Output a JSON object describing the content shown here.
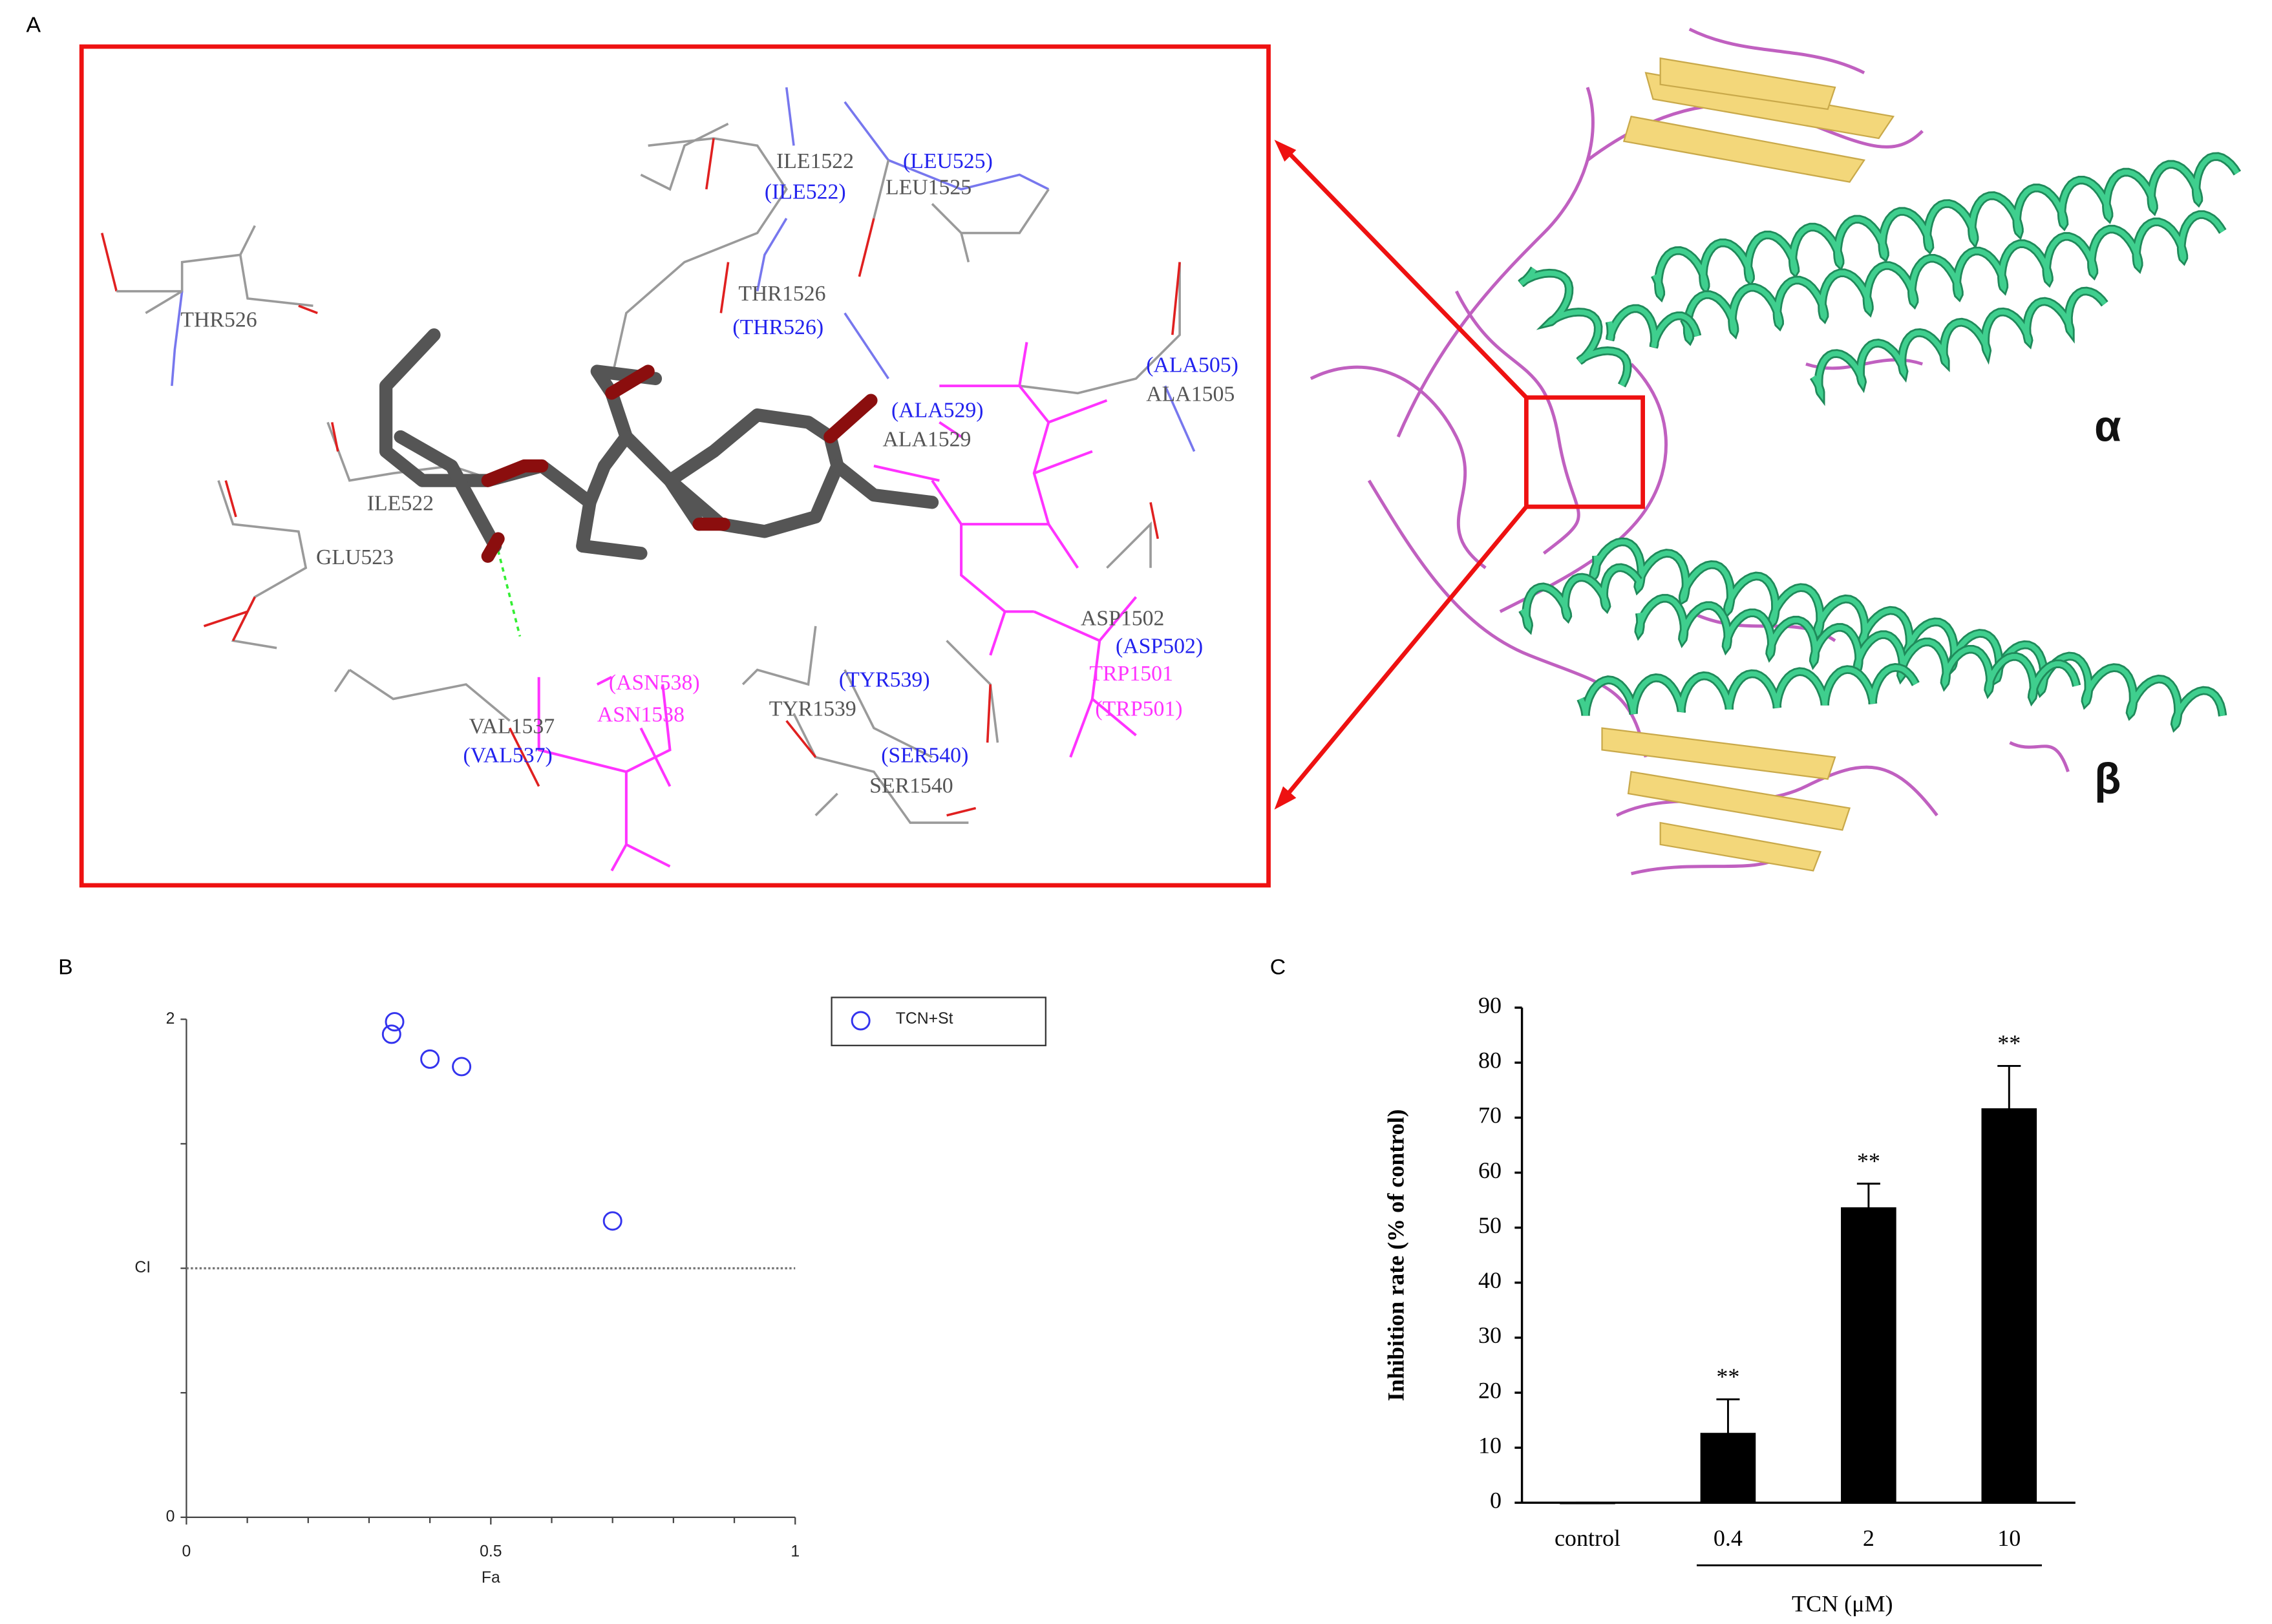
{
  "panel_labels": [
    "A",
    "B",
    "C"
  ],
  "docking": {
    "labels": [
      {
        "text": "ILE1522",
        "color": "#555555"
      },
      {
        "text": "(LEU525)",
        "color": "#2222ee"
      },
      {
        "text": "(ILE522)",
        "color": "#2222ee"
      },
      {
        "text": "LEU1525",
        "color": "#555555"
      },
      {
        "text": "THR1526",
        "color": "#555555"
      },
      {
        "text": "(THR526)",
        "color": "#2222ee"
      },
      {
        "text": "THR526",
        "color": "#555555"
      },
      {
        "text": "(ALA505)",
        "color": "#2222ee"
      },
      {
        "text": "ALA1505",
        "color": "#555555"
      },
      {
        "text": "(ALA529)",
        "color": "#2222ee"
      },
      {
        "text": "ALA1529",
        "color": "#555555"
      },
      {
        "text": "ILE522",
        "color": "#555555"
      },
      {
        "text": "GLU523",
        "color": "#555555"
      },
      {
        "text": "ASP1502",
        "color": "#555555"
      },
      {
        "text": "(ASP502)",
        "color": "#2222ee"
      },
      {
        "text": "TRP1501",
        "color": "#ff33ff"
      },
      {
        "text": "(TRP501)",
        "color": "#ff33ff"
      },
      {
        "text": "(ASN538)",
        "color": "#ff33ff"
      },
      {
        "text": "ASN1538",
        "color": "#ff33ff"
      },
      {
        "text": "(TYR539)",
        "color": "#2222ee"
      },
      {
        "text": "TYR1539",
        "color": "#555555"
      },
      {
        "text": "VAL1537",
        "color": "#555555"
      },
      {
        "text": "(VAL537)",
        "color": "#2222ee"
      },
      {
        "text": "(SER540)",
        "color": "#2222ee"
      },
      {
        "text": "SER1540",
        "color": "#555555"
      }
    ],
    "subunit_labels": [
      "α",
      "β"
    ]
  },
  "chart_data": [
    {
      "type": "scatter",
      "x_label": "Fa",
      "y_label": "CI",
      "series": [
        {
          "name": "TCN+St",
          "color": "#3333ee",
          "x": [
            0.342,
            0.337,
            0.4,
            0.452,
            0.7
          ],
          "values": [
            1.99,
            1.94,
            1.84,
            1.81,
            1.19
          ]
        }
      ],
      "xlim": [
        0,
        1
      ],
      "ylim": [
        0,
        2
      ],
      "xticks": [
        0,
        0.5,
        1
      ],
      "yticks": [
        0,
        2
      ],
      "minor_xticks": [
        0.1,
        0.2,
        0.3,
        0.4,
        0.6,
        0.7,
        0.8,
        0.9
      ],
      "minor_yticks": [
        0.5,
        1,
        1.5
      ],
      "reference_line": 1,
      "legend": "upper right"
    },
    {
      "type": "bar",
      "y_label": "Inhibition rate (% of control)",
      "x_label": "TCN (μM)",
      "categories": [
        "control",
        "0.4",
        "2",
        "10"
      ],
      "values": [
        0,
        12.7,
        53.7,
        71.7
      ],
      "errors": [
        0,
        6.1,
        4.3,
        7.7
      ],
      "annotations": [
        null,
        "**",
        "**",
        "**"
      ],
      "color": "#000000",
      "ylim": [
        0,
        90
      ],
      "yticks": [
        0,
        10,
        20,
        30,
        40,
        50,
        60,
        70,
        80,
        90
      ]
    }
  ]
}
